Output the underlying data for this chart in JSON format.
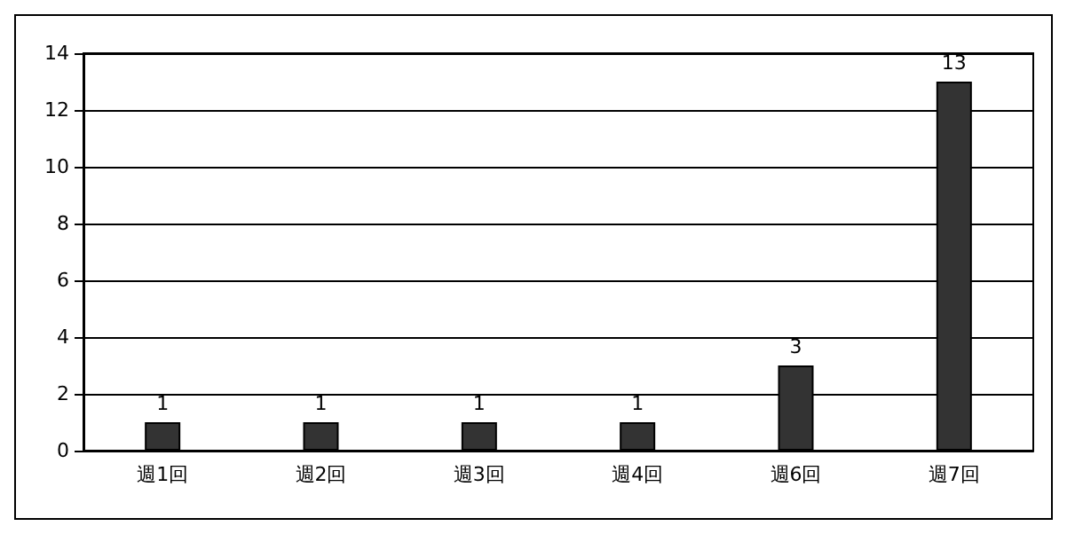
{
  "chart_data": {
    "type": "bar",
    "categories": [
      "週1回",
      "週2回",
      "週3回",
      "週4回",
      "週6回",
      "週7回"
    ],
    "values": [
      1,
      1,
      1,
      1,
      3,
      13
    ],
    "color": "#333333",
    "ylim": [
      0,
      14
    ],
    "yticks": [
      0,
      2,
      4,
      6,
      8,
      10,
      12,
      14
    ],
    "grid": "y",
    "data_labels": true
  }
}
